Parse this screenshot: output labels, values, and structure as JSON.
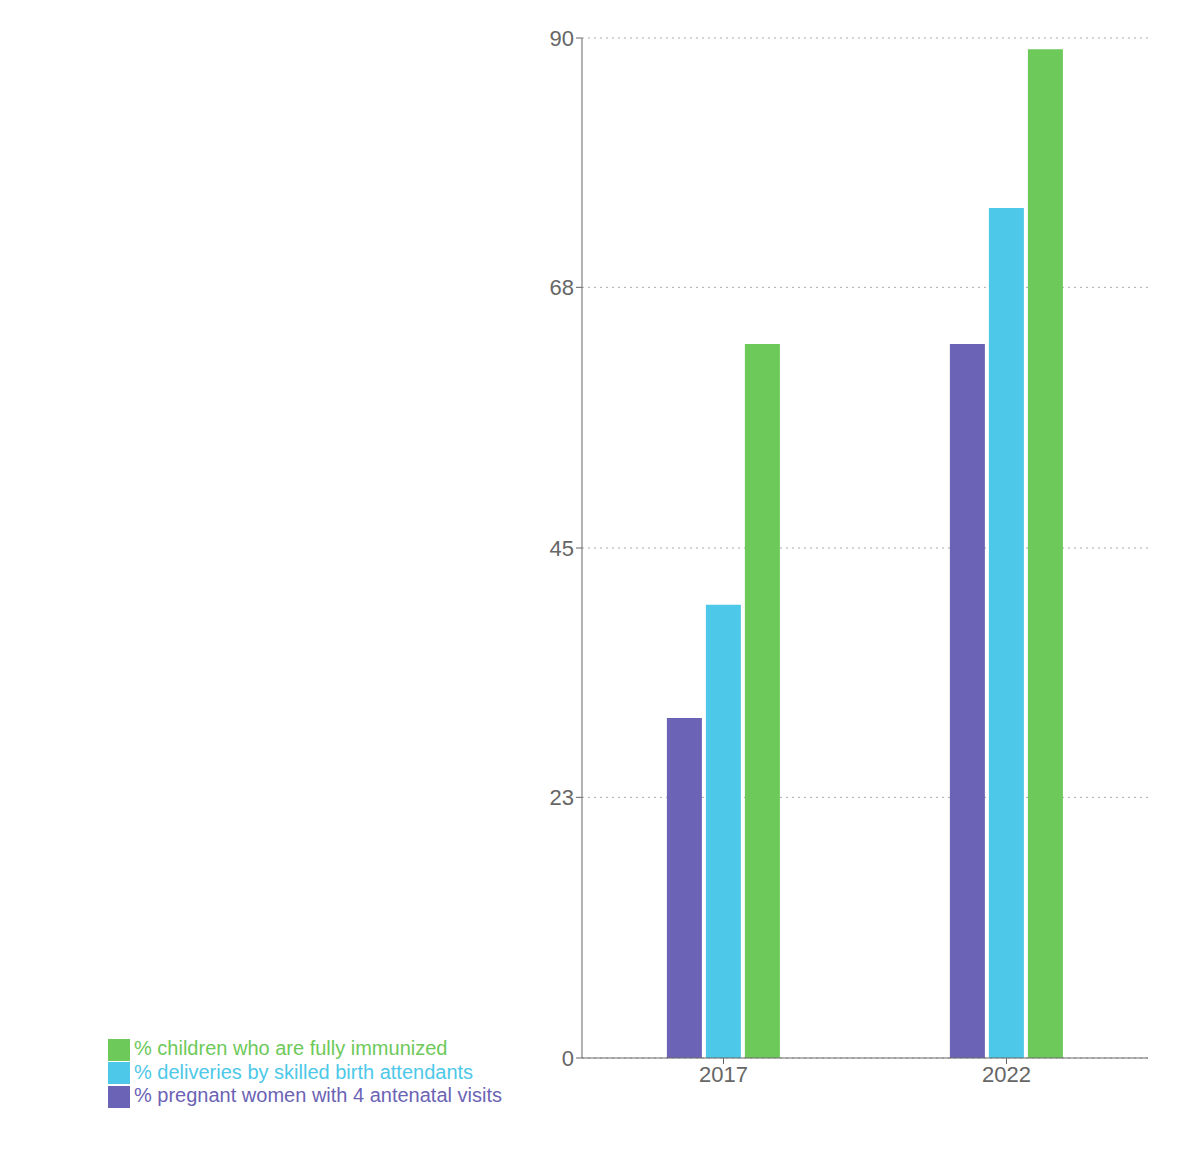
{
  "chart_data": {
    "type": "bar",
    "categories": [
      "2017",
      "2022"
    ],
    "series": [
      {
        "name": "% pregnant women with 4 antenatal visits",
        "color": "#6B63B5",
        "values": [
          30,
          63
        ]
      },
      {
        "name": "% deliveries by skilled birth attendants",
        "color": "#4DC8E8",
        "values": [
          40,
          75
        ]
      },
      {
        "name": "% children who are fully immunized",
        "color": "#6DC95A",
        "values": [
          63,
          89
        ]
      }
    ],
    "ylim": [
      0,
      90
    ],
    "yticks": [
      0,
      23,
      45,
      68,
      90
    ],
    "grid": true,
    "legend": "bottom"
  }
}
